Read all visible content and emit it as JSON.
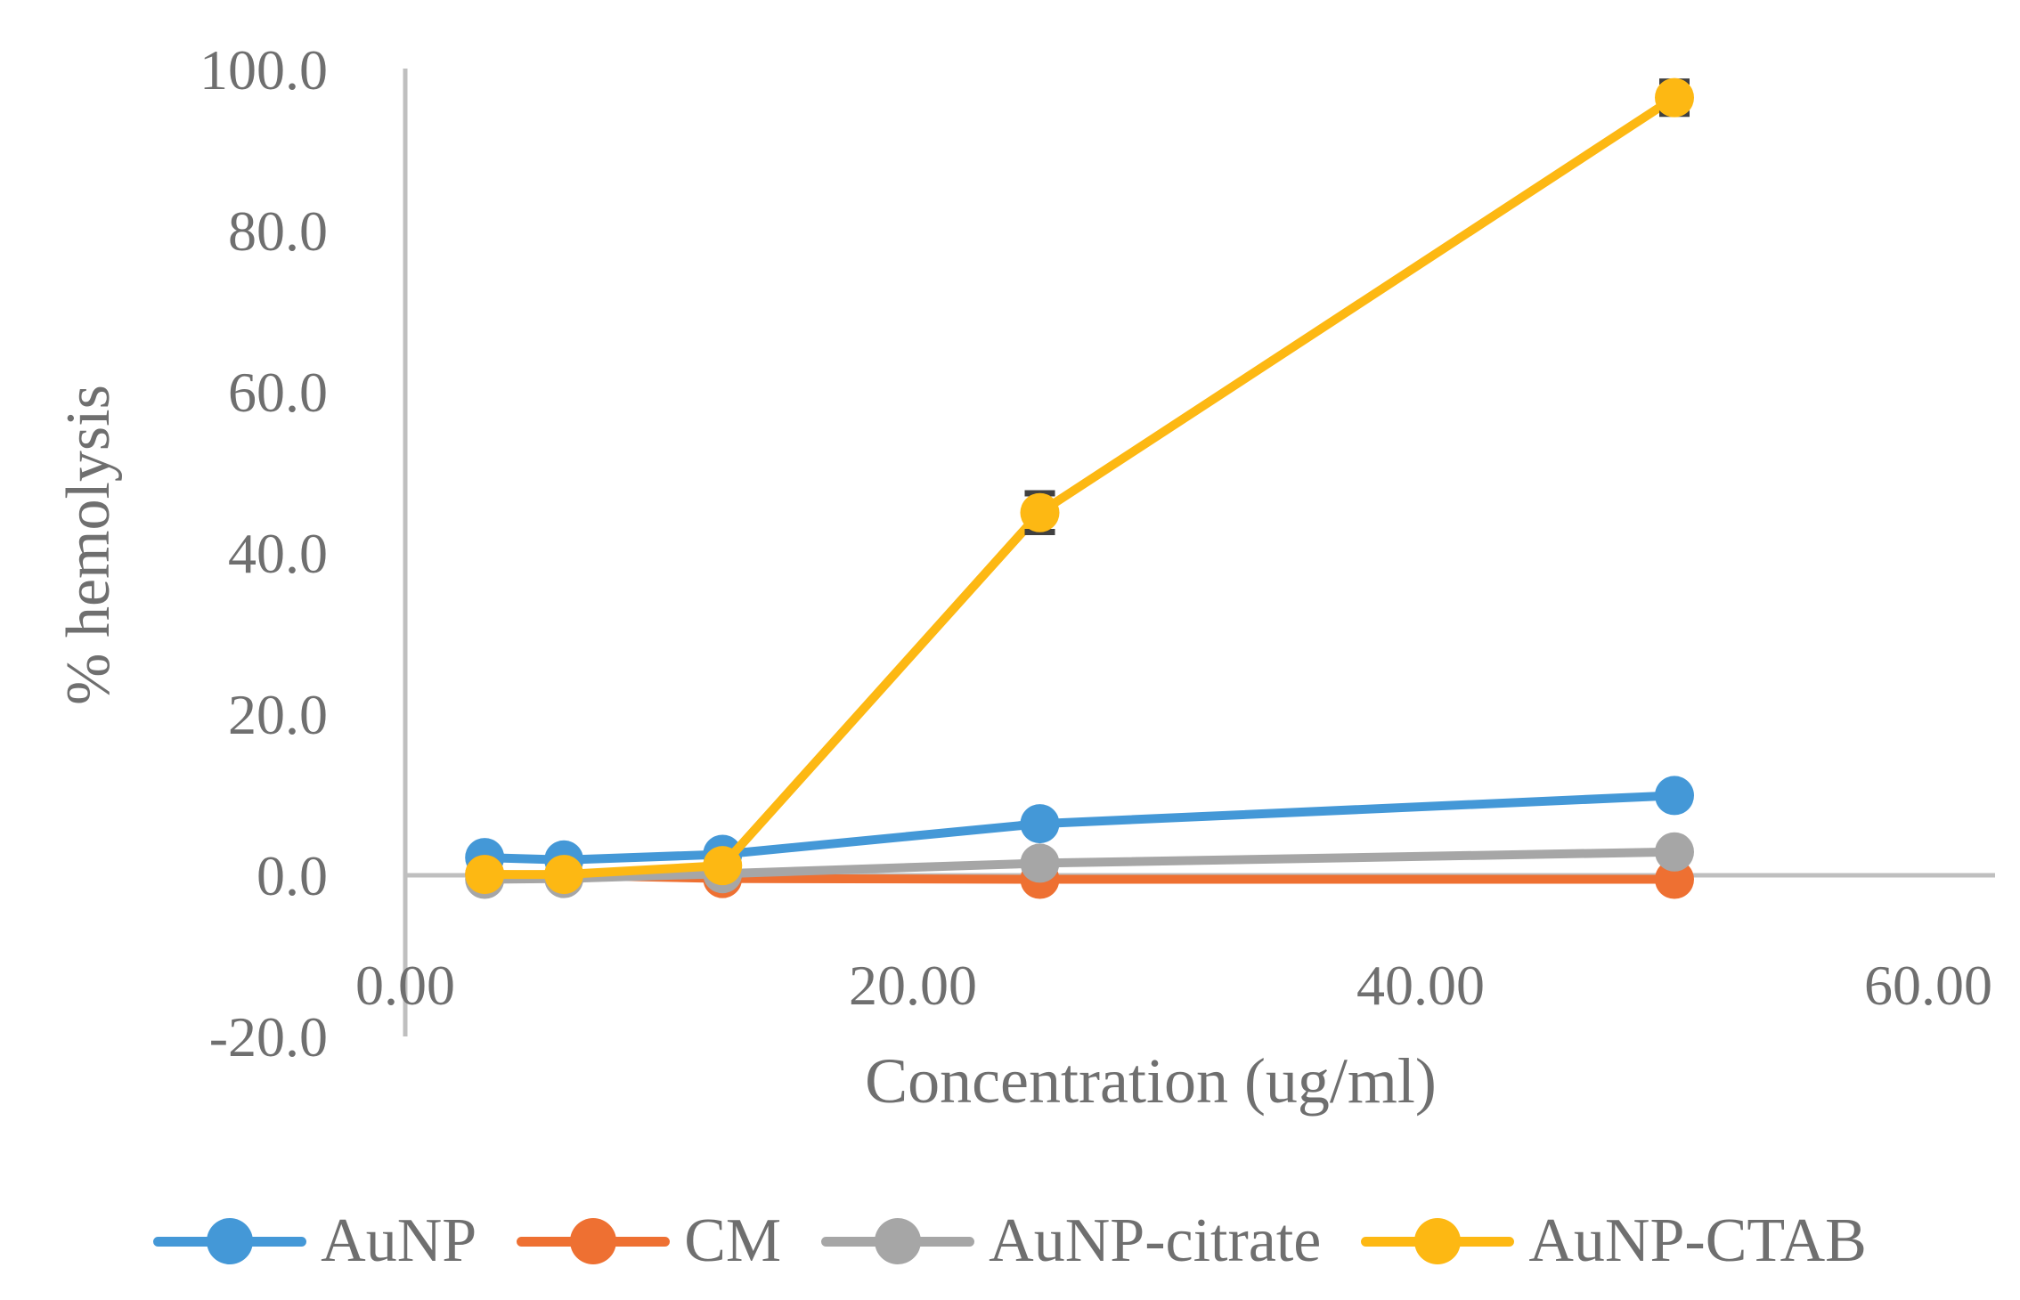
{
  "figure": {
    "background": "#FFFFFF"
  },
  "chart_data": {
    "type": "line",
    "title": "",
    "xlabel": "Concentration (ug/ml)",
    "ylabel": "% hemolysis",
    "x": [
      3.13,
      6.25,
      12.5,
      25,
      50
    ],
    "series": [
      {
        "name": "AuNP",
        "color": "#4498D7",
        "marker": "circle",
        "values": [
          2.2,
          1.9,
          2.6,
          6.4,
          9.9
        ]
      },
      {
        "name": "CM",
        "color": "#EE7032",
        "marker": "circle",
        "values": [
          0.1,
          0.0,
          -0.4,
          -0.5,
          -0.5
        ]
      },
      {
        "name": "AuNP-citrate",
        "color": "#A6A6A6",
        "marker": "circle",
        "values": [
          -0.5,
          -0.4,
          0.2,
          1.5,
          2.9
        ]
      },
      {
        "name": "AuNP-CTAB",
        "color": "#FDB813",
        "marker": "circle",
        "values": [
          0.1,
          0.1,
          1.2,
          45.0,
          96.5
        ]
      }
    ],
    "error_bars": [
      {
        "series": "AuNP-CTAB",
        "x": 25,
        "y": 45.0,
        "plus": 2.4,
        "minus": 2.4
      },
      {
        "series": "AuNP-CTAB",
        "x": 50,
        "y": 96.5,
        "plus": 2.0,
        "minus": 2.0
      }
    ],
    "xticks": {
      "values": [
        0,
        20,
        40,
        60
      ],
      "labels": [
        "0.00",
        "20.00",
        "40.00",
        "60.00"
      ]
    },
    "yticks": {
      "values": [
        -20,
        0,
        20,
        40,
        60,
        80,
        100
      ],
      "labels": [
        "-20.0",
        "0.0",
        "20.0",
        "40.0",
        "60.0",
        "80.0",
        "100.0"
      ]
    },
    "xlim": [
      0,
      62.6
    ],
    "ylim": [
      -20,
      100
    ],
    "grid": false,
    "legend_position": "bottom",
    "axis_color": "#BFBFBF",
    "text_color": "#6F6F6F",
    "error_bar_color": "#404040"
  }
}
